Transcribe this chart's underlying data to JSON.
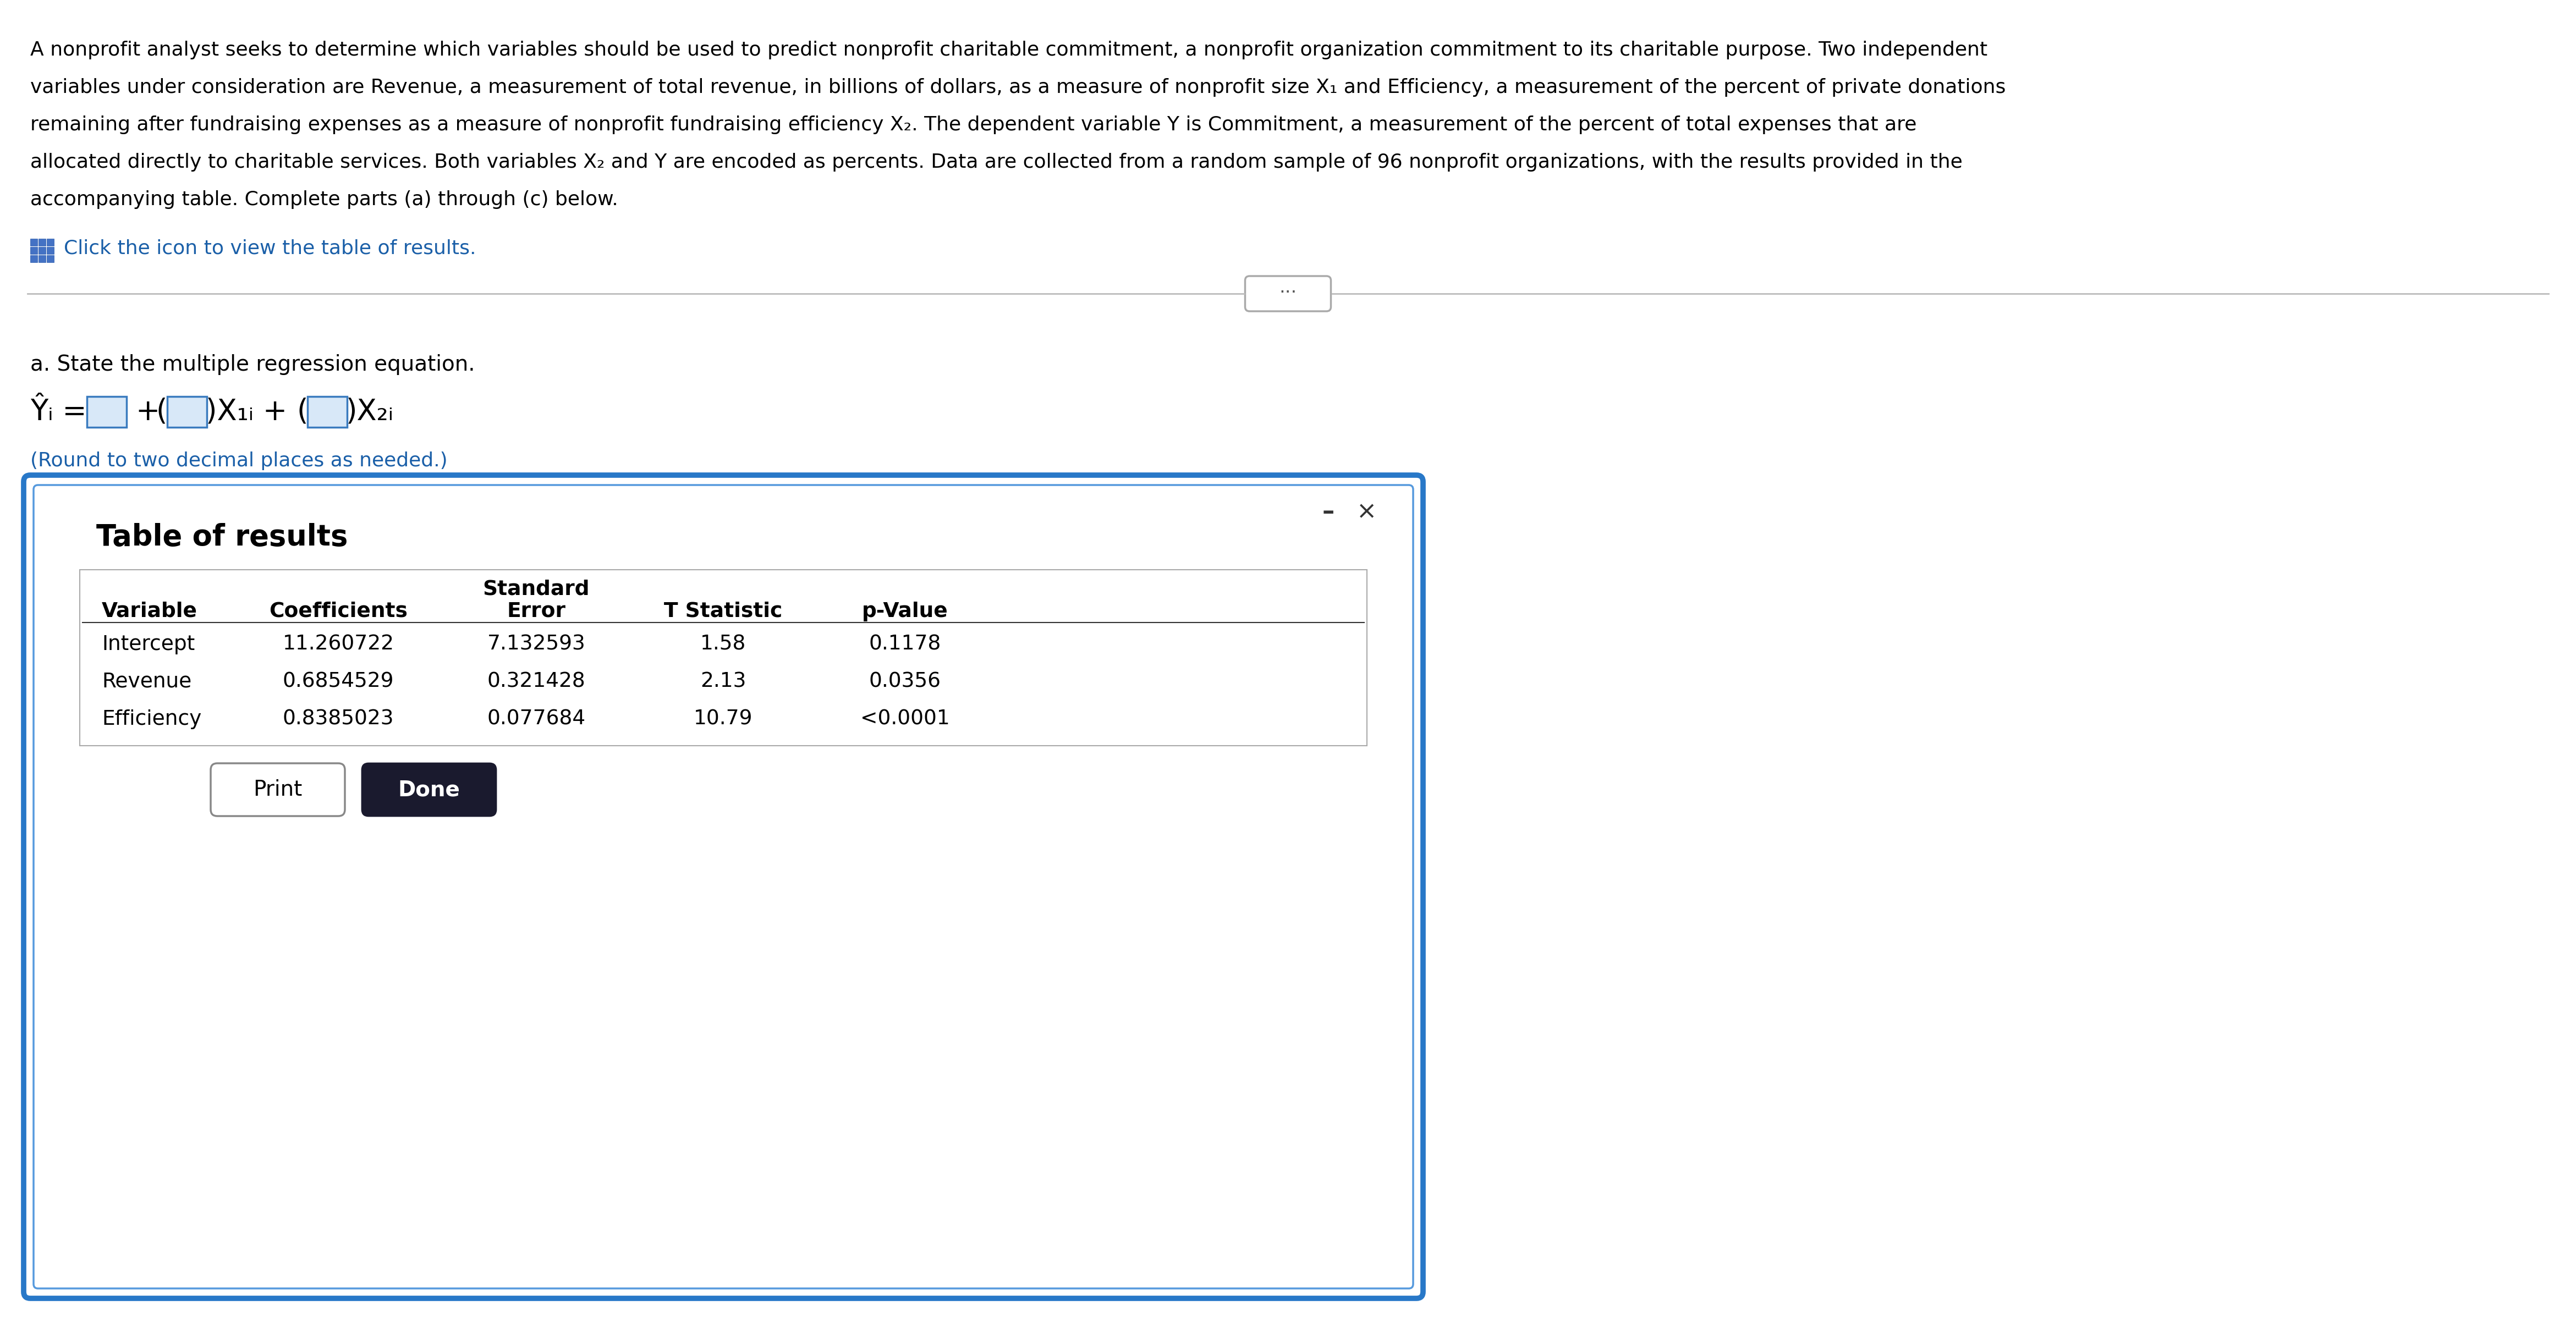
{
  "line1": "A nonprofit analyst seeks to determine which variables should be used to predict nonprofit charitable commitment, a nonprofit organization commitment to its charitable purpose. Two independent",
  "line2": "variables under consideration are Revenue, a measurement of total revenue, in billions of dollars, as a measure of nonprofit size X₁ and Efficiency, a measurement of the percent of private donations",
  "line3": "remaining after fundraising expenses as a measure of nonprofit fundraising efficiency X₂. The dependent variable Y is Commitment, a measurement of the percent of total expenses that are",
  "line4": "allocated directly to charitable services. Both variables X₂ and Y are encoded as percents. Data are collected from a random sample of 96 nonprofit organizations, with the results provided in the",
  "line5": "accompanying table. Complete parts (a) through (c) below.",
  "click_text": "Click the icon to view the table of results.",
  "section_a_text": "a. State the multiple regression equation.",
  "round_text": "(Round to two decimal places as needed.)",
  "table_title": "Table of results",
  "col_headers_line1": [
    "",
    "",
    "Standard",
    "",
    ""
  ],
  "col_headers_line2": [
    "Variable",
    "Coefficients",
    "Error",
    "T Statistic",
    "p-Value"
  ],
  "table_data": [
    [
      "Intercept",
      "11.260722",
      "7.132593",
      "1.58",
      "0.1178"
    ],
    [
      "Revenue",
      "0.6854529",
      "0.321428",
      "2.13",
      "0.0356"
    ],
    [
      "Efficiency",
      "0.8385023",
      "0.077684",
      "10.79",
      "<0.0001"
    ]
  ],
  "bg_color": "#ffffff",
  "box_border_color_outer": "#2878c8",
  "box_border_color_inner": "#5599dd",
  "table_border_color": "#aaaaaa",
  "blue_text_color": "#1a5fa8",
  "body_text_color": "#000000",
  "done_btn_color": "#1a1a2e",
  "para_fontsize": 26,
  "click_fontsize": 26,
  "section_fontsize": 28,
  "eq_fontsize": 38,
  "round_fontsize": 26,
  "table_title_fontsize": 38,
  "table_hdr_fontsize": 27,
  "table_data_fontsize": 27,
  "btn_fontsize": 28
}
